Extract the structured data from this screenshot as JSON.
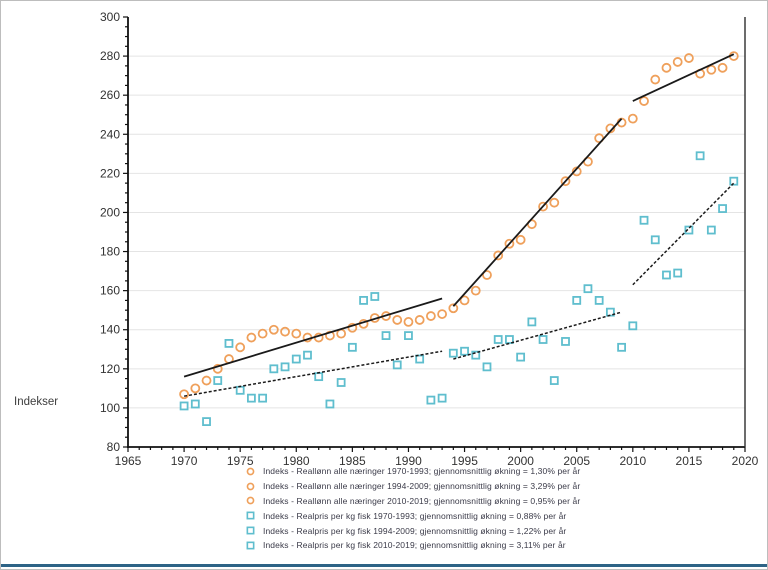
{
  "frame": {
    "border_color": "#bdbdbd",
    "bottom_bar_color": "#2d6386"
  },
  "chart_data": {
    "type": "scatter",
    "title": "",
    "xlabel": "",
    "ylabel": "Indekser",
    "xlim": [
      1965,
      2020
    ],
    "ylim": [
      80,
      300
    ],
    "grid": "horizontal",
    "legend_position": "bottom",
    "x_ticks": [
      1965,
      1970,
      1975,
      1980,
      1985,
      1990,
      1995,
      2000,
      2005,
      2010,
      2015,
      2020
    ],
    "x_tick_labels": [
      "1965",
      "1970",
      "1975",
      "1980",
      "1985",
      "1990",
      "1995",
      "2000",
      "2005",
      "2010",
      "2015",
      "2020"
    ],
    "y_ticks": [
      80,
      100,
      120,
      140,
      160,
      180,
      200,
      220,
      240,
      260,
      280,
      300
    ],
    "y_tick_labels": [
      "80",
      "100",
      "120",
      "140",
      "160",
      "180",
      "200",
      "220",
      "240",
      "260",
      "280",
      "300"
    ],
    "colors": {
      "realloenn": "#EFA05B",
      "realpris": "#5FBECE",
      "trendline": "#1a1a1a",
      "grid": "#e4e4e4",
      "axis": "#111111",
      "tick_text": "#333333",
      "legend_text": "#3b3b49"
    },
    "series": [
      {
        "name": "Indeks - Reallønn alle næringer",
        "marker": "circle",
        "color": "#EFA05B",
        "x": [
          1970,
          1971,
          1972,
          1973,
          1974,
          1975,
          1976,
          1977,
          1978,
          1979,
          1980,
          1981,
          1982,
          1983,
          1984,
          1985,
          1986,
          1987,
          1988,
          1989,
          1990,
          1991,
          1992,
          1993,
          1994,
          1995,
          1996,
          1997,
          1998,
          1999,
          2000,
          2001,
          2002,
          2003,
          2004,
          2005,
          2006,
          2007,
          2008,
          2009,
          2010,
          2011,
          2012,
          2013,
          2014,
          2015,
          2016,
          2017,
          2018,
          2019
        ],
        "values": [
          107,
          110,
          114,
          120,
          125,
          131,
          136,
          138,
          140,
          139,
          138,
          136,
          136,
          137,
          138,
          141,
          143,
          146,
          147,
          145,
          144,
          145,
          147,
          148,
          151,
          155,
          160,
          168,
          178,
          184,
          186,
          194,
          203,
          205,
          216,
          221,
          226,
          238,
          243,
          246,
          248,
          257,
          268,
          274,
          277,
          279,
          271,
          273,
          274,
          280
        ]
      },
      {
        "name": "Indeks - Realpris per kg fisk",
        "marker": "square",
        "color": "#5FBECE",
        "x": [
          1970,
          1971,
          1972,
          1973,
          1974,
          1975,
          1976,
          1977,
          1978,
          1979,
          1980,
          1981,
          1982,
          1983,
          1984,
          1985,
          1986,
          1987,
          1988,
          1989,
          1990,
          1991,
          1992,
          1993,
          1994,
          1995,
          1996,
          1997,
          1998,
          1999,
          2000,
          2001,
          2002,
          2003,
          2004,
          2005,
          2006,
          2007,
          2008,
          2009,
          2010,
          2011,
          2012,
          2013,
          2014,
          2015,
          2016,
          2017,
          2018,
          2019
        ],
        "values": [
          101,
          102,
          93,
          114,
          133,
          109,
          105,
          105,
          120,
          121,
          125,
          127,
          116,
          102,
          113,
          131,
          155,
          157,
          137,
          122,
          137,
          125,
          104,
          105,
          128,
          129,
          127,
          121,
          135,
          135,
          126,
          144,
          135,
          114,
          134,
          155,
          161,
          155,
          149,
          131,
          142,
          196,
          186,
          168,
          169,
          191,
          229,
          191,
          202,
          216
        ]
      }
    ],
    "trendlines": [
      {
        "style": "solid",
        "series": "realloenn",
        "period": "1970-1993",
        "rate": "1,30% per år",
        "from": [
          1970,
          116
        ],
        "to": [
          1993,
          156
        ]
      },
      {
        "style": "solid",
        "series": "realloenn",
        "period": "1994-2009",
        "rate": "3,29% per år",
        "from": [
          1994,
          152
        ],
        "to": [
          2009,
          248
        ]
      },
      {
        "style": "solid",
        "series": "realloenn",
        "period": "2010-2019",
        "rate": "0,95% per år",
        "from": [
          2010,
          257
        ],
        "to": [
          2019,
          281
        ]
      },
      {
        "style": "dashed",
        "series": "realpris",
        "period": "1970-1993",
        "rate": "0,88% per år",
        "from": [
          1970,
          106
        ],
        "to": [
          1993,
          129
        ]
      },
      {
        "style": "dashed",
        "series": "realpris",
        "period": "1994-2009",
        "rate": "1,22% per år",
        "from": [
          1994,
          125
        ],
        "to": [
          2009,
          149
        ]
      },
      {
        "style": "dashed",
        "series": "realpris",
        "period": "2010-2019",
        "rate": "3,11% per år",
        "from": [
          2010,
          163
        ],
        "to": [
          2019,
          215
        ]
      }
    ],
    "legend": [
      {
        "marker": "circle",
        "color": "#EFA05B",
        "label": "Indeks - Reallønn alle næringer 1970-1993; gjennomsnittlig økning = 1,30% per år"
      },
      {
        "marker": "circle",
        "color": "#EFA05B",
        "label": "Indeks - Reallønn alle næringer 1994-2009; gjennomsnittlig økning = 3,29% per år"
      },
      {
        "marker": "circle",
        "color": "#EFA05B",
        "label": "Indeks - Reallønn alle næringer 2010-2019; gjennomsnittlig økning = 0,95% per år"
      },
      {
        "marker": "square",
        "color": "#5FBECE",
        "label": "Indeks - Realpris per kg fisk 1970-1993; gjennomsnittlig økning = 0,88% per år"
      },
      {
        "marker": "square",
        "color": "#5FBECE",
        "label": "Indeks - Realpris per kg fisk 1994-2009; gjennomsnittlig økning = 1,22% per år"
      },
      {
        "marker": "square",
        "color": "#5FBECE",
        "label": "Indeks - Realpris per kg fisk 2010-2019; gjennomsnittlig økning = 3,11% per år"
      }
    ]
  }
}
